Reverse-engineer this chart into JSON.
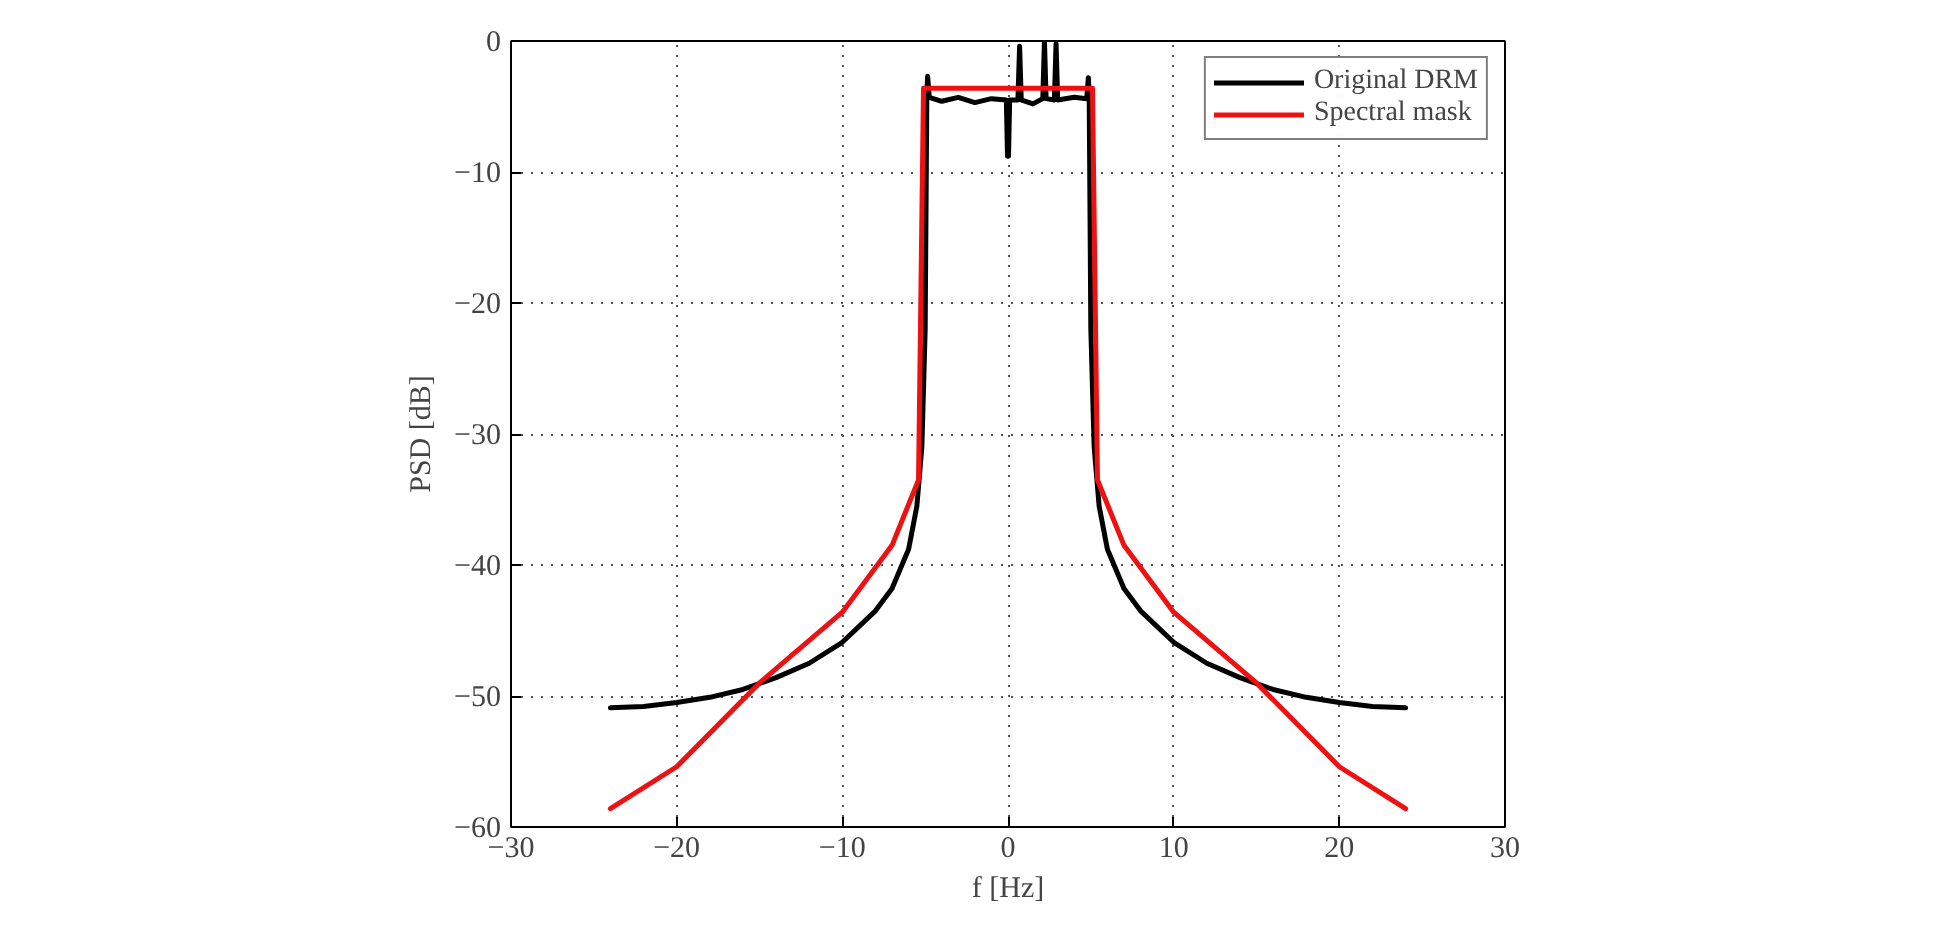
{
  "chart_data": {
    "type": "line",
    "xlabel": "f [Hz]",
    "ylabel": "PSD [dB]",
    "xlim": [
      -30,
      30
    ],
    "ylim": [
      -60,
      0
    ],
    "xticks": [
      {
        "value": -30,
        "label": "−30"
      },
      {
        "value": -20,
        "label": "−20"
      },
      {
        "value": -10,
        "label": "−10"
      },
      0,
      10,
      20,
      30
    ],
    "yticks": [
      {
        "value": -60,
        "label": "−60"
      },
      {
        "value": -50,
        "label": "−50"
      },
      {
        "value": -40,
        "label": "−40"
      },
      {
        "value": -30,
        "label": "−30"
      },
      {
        "value": -20,
        "label": "−20"
      },
      {
        "value": -10,
        "label": "−10"
      },
      0
    ],
    "grid": true,
    "legend": "top right",
    "line_style": "solid",
    "marker": "none",
    "series": [
      {
        "name": "Original DRM",
        "color": "#000000",
        "x": [
          -24,
          -22,
          -20,
          -18,
          -16,
          -14,
          -12,
          -10,
          -8,
          -7,
          -6,
          -5.5,
          -5.2,
          -5.0,
          -4.9,
          -4.85,
          -4.75,
          -4,
          -3,
          -2,
          -1,
          -0.1,
          -0.03,
          0.03,
          0.1,
          0.6,
          0.7,
          0.8,
          1.5,
          2.1,
          2.2,
          2.3,
          2.8,
          2.9,
          3.0,
          4,
          4.75,
          4.85,
          4.9,
          5.0,
          5.2,
          5.5,
          6,
          7,
          8,
          10,
          12,
          14,
          16,
          18,
          20,
          22,
          24
        ],
        "values": [
          -50.9,
          -50.8,
          -50.5,
          -50.1,
          -49.5,
          -48.6,
          -47.5,
          -45.9,
          -43.5,
          -41.8,
          -38.8,
          -35.5,
          -31,
          -22,
          -4,
          -2.7,
          -4.3,
          -4.6,
          -4.3,
          -4.7,
          -4.4,
          -4.5,
          -8.8,
          -8.8,
          -4.5,
          -4.5,
          -0.4,
          -4.5,
          -4.8,
          -4.4,
          0,
          -4.4,
          -4.5,
          -0.2,
          -4.5,
          -4.3,
          -4.4,
          -2.8,
          -4,
          -22,
          -31,
          -35.5,
          -38.8,
          -41.8,
          -43.5,
          -45.9,
          -47.5,
          -48.6,
          -49.5,
          -50.1,
          -50.5,
          -50.8,
          -50.9
        ]
      },
      {
        "name": "Spectral mask",
        "color": "#ee1111",
        "x": [
          -24,
          -20,
          -15,
          -10,
          -7,
          -5.4,
          -5.1,
          5.1,
          5.4,
          7,
          10,
          15,
          20,
          24
        ],
        "values": [
          -58.6,
          -55.4,
          -49,
          -43.6,
          -38.5,
          -33.5,
          -3.6,
          -3.6,
          -33.5,
          -38.5,
          -43.6,
          -49,
          -55.4,
          -58.6
        ]
      }
    ]
  }
}
